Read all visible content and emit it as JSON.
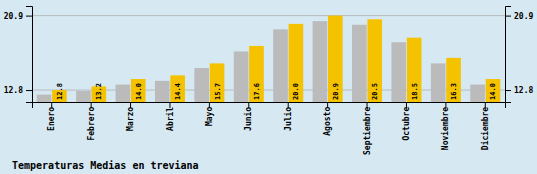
{
  "chart_data": {
    "type": "bar",
    "title": "Temperaturas Medias en treviana",
    "categories": [
      "Enero",
      "Febrero",
      "Marzo",
      "Abril",
      "Mayo",
      "Junio",
      "Julio",
      "Agosto",
      "Septiembre",
      "Octubre",
      "Noviembre",
      "Diciembre"
    ],
    "series": [
      {
        "color": "#BBBBBB",
        "values": [
          12.3,
          12.7,
          13.4,
          13.8,
          15.2,
          17.0,
          19.4,
          20.3,
          19.9,
          18.0,
          15.7,
          13.4
        ]
      },
      {
        "color": "#F5C200",
        "values": [
          12.8,
          13.2,
          14.0,
          14.4,
          15.7,
          17.6,
          20.0,
          20.9,
          20.5,
          18.5,
          16.3,
          14.0
        ],
        "data_labels": true,
        "value_labels": [
          "12.8",
          "13.2",
          "14.0",
          "14.4",
          "15.7",
          "17.6",
          "20.0",
          "20.9",
          "20.5",
          "18.5",
          "16.3",
          "14.0"
        ]
      }
    ],
    "ylim": [
      11.5,
      21.945
    ],
    "yticks": [
      12.8,
      20.9
    ],
    "grid": true
  }
}
